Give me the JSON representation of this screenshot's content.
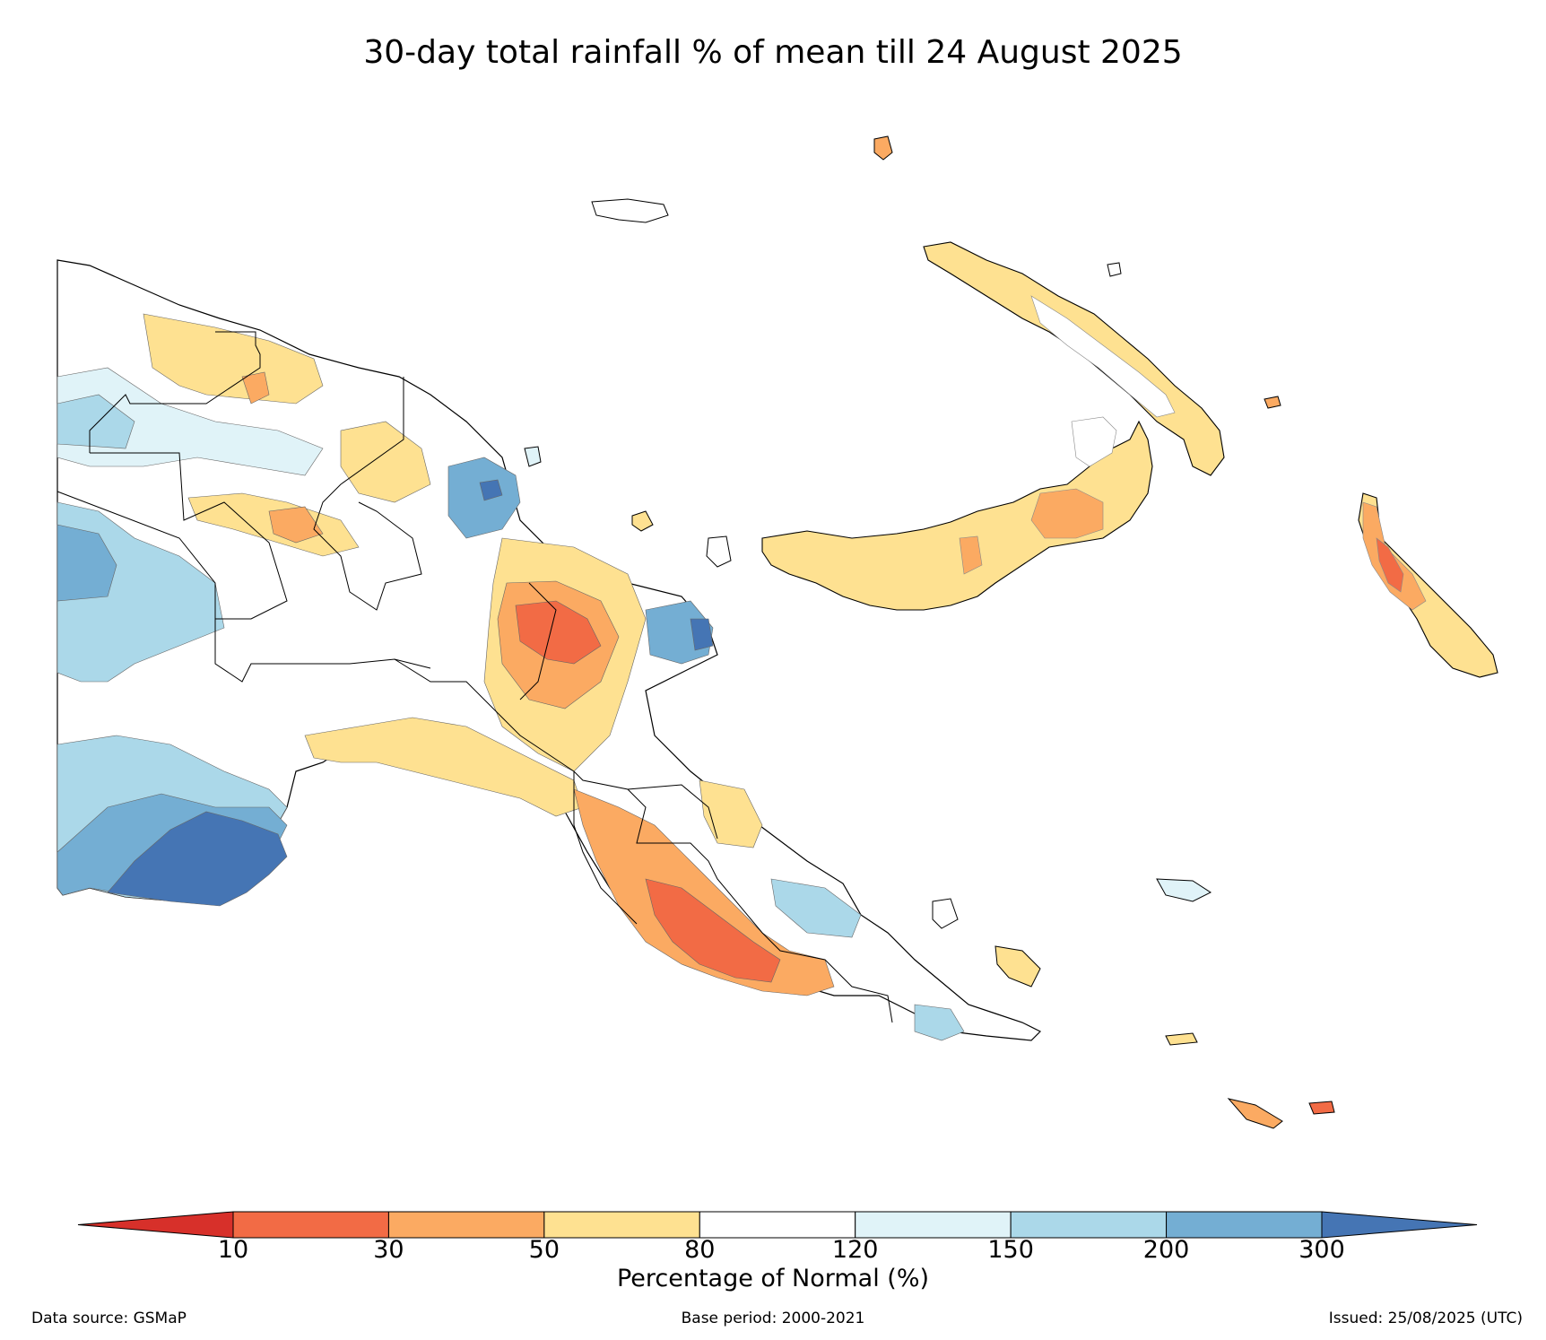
{
  "title": "30-day total rainfall % of mean till 24 August 2025",
  "legend": {
    "label": "Percentage of Normal (%)",
    "ticks": [
      "10",
      "30",
      "50",
      "80",
      "120",
      "150",
      "200",
      "300"
    ],
    "bins": [
      {
        "range": "<10",
        "color": "#d7302a"
      },
      {
        "range": "10-30",
        "color": "#f26b45"
      },
      {
        "range": "30-50",
        "color": "#fbaa62"
      },
      {
        "range": "50-80",
        "color": "#fee191"
      },
      {
        "range": "80-120",
        "color": "#ffffff"
      },
      {
        "range": "120-150",
        "color": "#e0f3f8"
      },
      {
        "range": "150-200",
        "color": "#abd8e9"
      },
      {
        "range": "200-300",
        "color": "#74aed3"
      },
      {
        "range": ">300",
        "color": "#4575b4"
      }
    ]
  },
  "footer": {
    "source": "Data source: GSMaP",
    "base_period": "Base period: 2000-2021",
    "issued": "Issued: 25/08/2025 (UTC)"
  }
}
